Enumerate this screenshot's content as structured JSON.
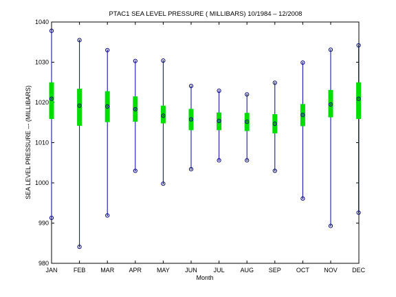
{
  "chart_data": {
    "type": "boxplot",
    "title": "PTAC1  SEA LEVEL PRESSURE ( MILLIBARS) 10/1984 – 12/2008",
    "xlabel": "Month",
    "ylabel": "SEA LEVEL PRESSURE –- (MILLIBARS)",
    "ylim": [
      980,
      1040
    ],
    "yticks": [
      980,
      990,
      1000,
      1010,
      1020,
      1030,
      1040
    ],
    "grid": false,
    "categories": [
      "JAN",
      "FEB",
      "MAR",
      "APR",
      "MAY",
      "JUN",
      "JUL",
      "AUG",
      "SEP",
      "OCT",
      "NOV",
      "DEC"
    ],
    "max": [
      1037.8,
      1035.5,
      1033.0,
      1030.3,
      1030.4,
      1024.1,
      1022.9,
      1022.0,
      1024.9,
      1029.9,
      1033.1,
      1034.2
    ],
    "mean": [
      1020.9,
      1019.2,
      1019.0,
      1018.3,
      1016.7,
      1015.8,
      1015.4,
      1015.2,
      1014.7,
      1016.9,
      1019.5,
      1020.9
    ],
    "min": [
      991.3,
      984.1,
      991.9,
      1003.0,
      999.8,
      1003.4,
      1005.6,
      1005.6,
      1003.0,
      996.1,
      989.3,
      992.6
    ],
    "box_low": [
      1015.9,
      1014.2,
      1015.1,
      1015.2,
      1014.8,
      1013.1,
      1013.1,
      1012.9,
      1012.3,
      1014.1,
      1016.3,
      1015.9
    ],
    "box_high": [
      1025.0,
      1023.4,
      1022.8,
      1021.5,
      1019.2,
      1018.4,
      1017.5,
      1017.4,
      1017.1,
      1019.6,
      1023.1,
      1025.0
    ],
    "colors": {
      "whisker": "#0000a0",
      "box": "#00dd00",
      "marker": "#000080",
      "axes": "#000000"
    }
  }
}
